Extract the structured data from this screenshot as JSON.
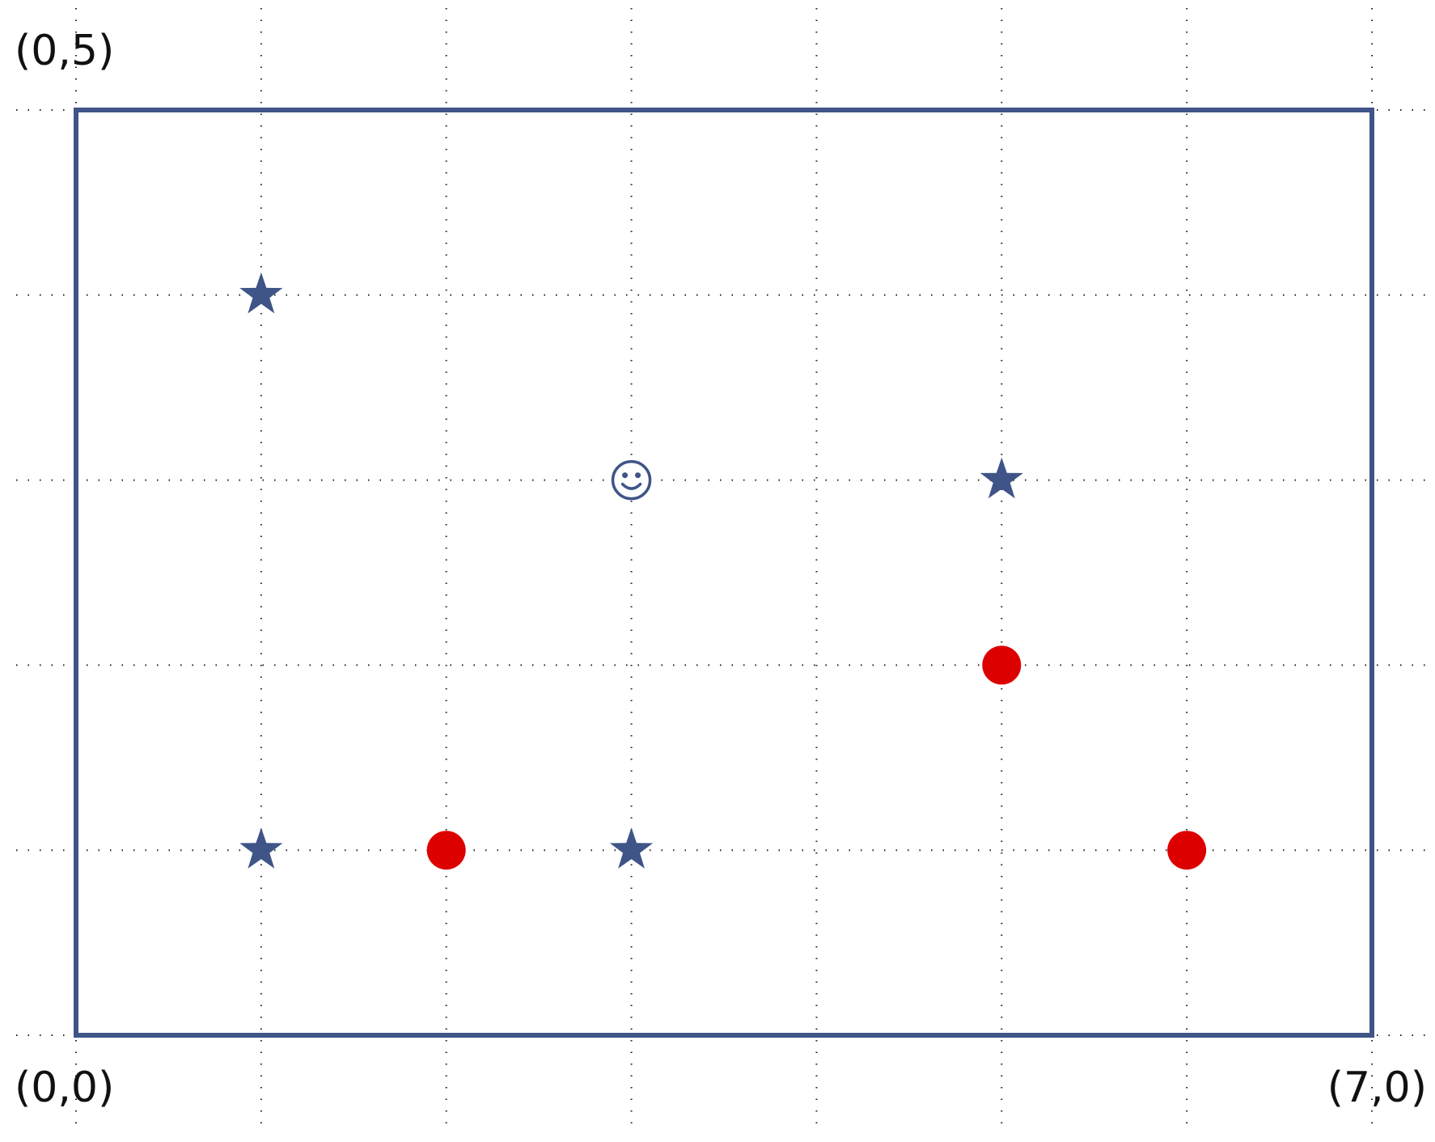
{
  "labels": {
    "top_left": "(0,5)",
    "bottom_left": "(0,0)",
    "bottom_right": "(7,0)"
  },
  "grid": {
    "x_range": [
      0,
      7
    ],
    "y_range": [
      0,
      5
    ],
    "step": 1,
    "lines": "dotted"
  },
  "colors": {
    "frame": "#3f5487",
    "star": "#3f5487",
    "circle": "#dd0000",
    "smiley": "#3f5487"
  },
  "markers": [
    {
      "kind": "star",
      "icon": "star-icon",
      "x": 1,
      "y": 4
    },
    {
      "kind": "star",
      "icon": "star-icon",
      "x": 5,
      "y": 3
    },
    {
      "kind": "star",
      "icon": "star-icon",
      "x": 1,
      "y": 1
    },
    {
      "kind": "star",
      "icon": "star-icon",
      "x": 3,
      "y": 1
    },
    {
      "kind": "circle",
      "icon": "red-dot-icon",
      "x": 2,
      "y": 1
    },
    {
      "kind": "circle",
      "icon": "red-dot-icon",
      "x": 5,
      "y": 2
    },
    {
      "kind": "circle",
      "icon": "red-dot-icon",
      "x": 6,
      "y": 1
    },
    {
      "kind": "smiley",
      "icon": "smiley-face-icon",
      "x": 3,
      "y": 3
    }
  ]
}
